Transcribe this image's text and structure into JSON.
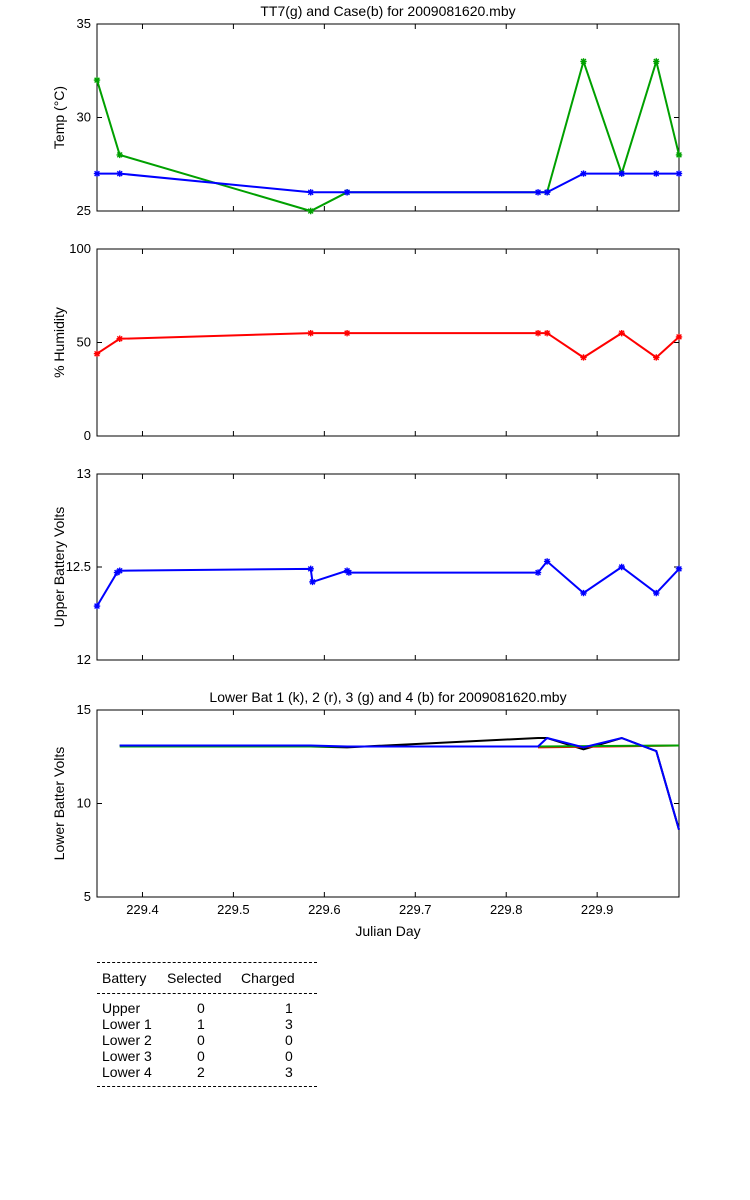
{
  "chart_data": [
    {
      "type": "line",
      "title": "TT7(g) and Case(b) for 2009081620.mby",
      "xlabel": "",
      "ylabel": "Temp  (°C)",
      "xlim": [
        229.35,
        229.99
      ],
      "ylim": [
        25,
        35
      ],
      "yticks": [
        "25",
        "30",
        "35"
      ],
      "series": [
        {
          "name": "TT7",
          "color": "#00a000",
          "marker": "star",
          "x": [
            229.35,
            229.375,
            229.585,
            229.625,
            229.845,
            229.885,
            229.927,
            229.965,
            229.99
          ],
          "y": [
            32,
            28,
            25,
            26,
            26,
            33,
            27,
            33,
            28
          ]
        },
        {
          "name": "Case",
          "color": "#0000ff",
          "marker": "star",
          "x": [
            229.35,
            229.375,
            229.585,
            229.625,
            229.835,
            229.845,
            229.885,
            229.927,
            229.965,
            229.99
          ],
          "y": [
            27,
            27,
            26,
            26,
            26,
            26,
            27,
            27,
            27,
            27
          ]
        }
      ]
    },
    {
      "type": "line",
      "title": "",
      "xlabel": "",
      "ylabel": "% Humidity",
      "xlim": [
        229.35,
        229.99
      ],
      "ylim": [
        0,
        100
      ],
      "yticks": [
        "0",
        "50",
        "100"
      ],
      "series": [
        {
          "name": "Humidity",
          "color": "#ff0000",
          "marker": "star",
          "x": [
            229.35,
            229.375,
            229.585,
            229.625,
            229.835,
            229.845,
            229.885,
            229.927,
            229.965,
            229.99
          ],
          "y": [
            44,
            52,
            55,
            55,
            55,
            55,
            42,
            55,
            42,
            53
          ]
        }
      ]
    },
    {
      "type": "line",
      "title": "",
      "xlabel": "",
      "ylabel": "Upper Battery Volts",
      "xlim": [
        229.35,
        229.99
      ],
      "ylim": [
        12,
        13
      ],
      "yticks": [
        "12",
        "12.5",
        "13"
      ],
      "series": [
        {
          "name": "Upper",
          "color": "#0000ff",
          "marker": "star",
          "x": [
            229.35,
            229.372,
            229.375,
            229.585,
            229.587,
            229.625,
            229.627,
            229.835,
            229.845,
            229.885,
            229.927,
            229.965,
            229.99
          ],
          "y": [
            12.29,
            12.47,
            12.48,
            12.49,
            12.42,
            12.48,
            12.47,
            12.47,
            12.53,
            12.36,
            12.5,
            12.36,
            12.49
          ]
        }
      ]
    },
    {
      "type": "line",
      "title": "Lower Bat 1 (k), 2 (r), 3 (g) and 4 (b) for 2009081620.mby",
      "xlabel": "Julian Day",
      "ylabel": "Lower Batter Volts",
      "xlim": [
        229.35,
        229.99
      ],
      "ylim": [
        5,
        15
      ],
      "yticks": [
        "5",
        "10",
        "15"
      ],
      "xticks": [
        "229.4",
        "229.5",
        "229.6",
        "229.7",
        "229.8",
        "229.9"
      ],
      "series": [
        {
          "name": "Lower 1",
          "color": "#000000",
          "marker": "none",
          "x": [
            229.375,
            229.585,
            229.625,
            229.835,
            229.845,
            229.885,
            229.927,
            229.965,
            229.99
          ],
          "y": [
            13.1,
            13.05,
            13.0,
            13.5,
            13.5,
            12.9,
            13.5,
            12.8,
            8.6
          ]
        },
        {
          "name": "Lower 2",
          "color": "#ff0000",
          "marker": "none",
          "x": [
            229.835,
            229.99
          ],
          "y": [
            13.0,
            13.1
          ]
        },
        {
          "name": "Lower 3",
          "color": "#00a000",
          "marker": "none",
          "x": [
            229.375,
            229.835,
            229.99
          ],
          "y": [
            13.05,
            13.05,
            13.1
          ]
        },
        {
          "name": "Lower 4",
          "color": "#0000ff",
          "marker": "none",
          "x": [
            229.375,
            229.585,
            229.625,
            229.835,
            229.845,
            229.885,
            229.927,
            229.965,
            229.99
          ],
          "y": [
            13.1,
            13.1,
            13.05,
            13.05,
            13.5,
            13.0,
            13.5,
            12.8,
            8.6
          ]
        }
      ]
    }
  ],
  "battery_table": {
    "headers": [
      "Battery",
      "Selected",
      "Charged"
    ],
    "rows": [
      {
        "battery": "Upper",
        "selected": "0",
        "charged": "1"
      },
      {
        "battery": "Lower 1",
        "selected": "1",
        "charged": "3"
      },
      {
        "battery": "Lower 2",
        "selected": "0",
        "charged": "0"
      },
      {
        "battery": "Lower 3",
        "selected": "0",
        "charged": "0"
      },
      {
        "battery": "Lower 4",
        "selected": "2",
        "charged": "3"
      }
    ]
  }
}
